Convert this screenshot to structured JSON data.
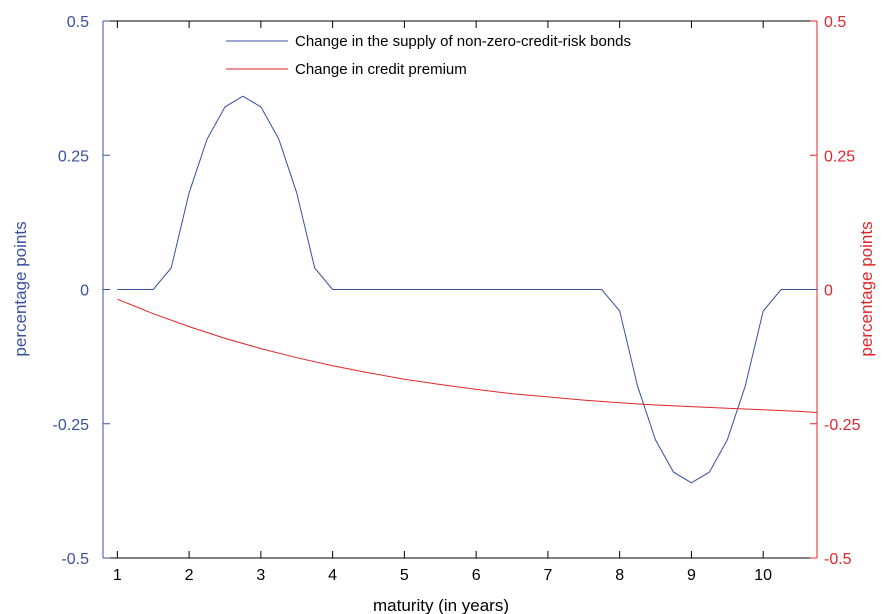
{
  "chart_data": {
    "type": "line",
    "title": "",
    "xlabel": "maturity (in years)",
    "ylabel_left": "percentage points",
    "ylabel_right": "percentage points",
    "xlim": [
      0.8,
      10.75
    ],
    "ylim_left": [
      -0.5,
      0.5
    ],
    "ylim_right": [
      -0.5,
      0.5
    ],
    "x_ticks": [
      1,
      2,
      3,
      4,
      5,
      6,
      7,
      8,
      9,
      10
    ],
    "x_tick_labels": [
      "1",
      "2",
      "3",
      "4",
      "5",
      "6",
      "7",
      "8",
      "9",
      "10"
    ],
    "y_ticks": [
      -0.5,
      -0.25,
      0,
      0.25,
      0.5
    ],
    "y_tick_labels_left": [
      "-0.5",
      "-0.25",
      "0",
      "0.25",
      "0.5"
    ],
    "y_tick_labels_right": [
      "-0.5",
      "-0.25",
      "0",
      "0.25",
      "0.5"
    ],
    "grid": false,
    "legend_position": "top-center",
    "series": [
      {
        "name": "Change in the supply of non-zero-credit-risk bonds",
        "axis": "left",
        "color": "#3a4fa0",
        "x": [
          1,
          1.25,
          1.5,
          1.75,
          2,
          2.25,
          2.5,
          2.75,
          3,
          3.25,
          3.5,
          3.75,
          4,
          4.25,
          4.5,
          4.75,
          5,
          5.25,
          5.5,
          5.75,
          6,
          6.25,
          6.5,
          6.75,
          7,
          7.25,
          7.5,
          7.75,
          8,
          8.25,
          8.5,
          8.75,
          9,
          9.25,
          9.5,
          9.75,
          10,
          10.25,
          10.5,
          10.75
        ],
        "y": [
          0,
          0,
          0,
          0.04,
          0.18,
          0.28,
          0.34,
          0.36,
          0.34,
          0.28,
          0.18,
          0.04,
          0,
          0,
          0,
          0,
          0,
          0,
          0,
          0,
          0,
          0,
          0,
          0,
          0,
          0,
          0,
          0.0,
          -0.04,
          -0.18,
          -0.28,
          -0.34,
          -0.36,
          -0.34,
          -0.28,
          -0.18,
          -0.04,
          0,
          0,
          0
        ]
      },
      {
        "name": "Change in credit premium",
        "axis": "right",
        "color": "#e0262b",
        "x": [
          1,
          1.5,
          2,
          2.5,
          3,
          3.5,
          4,
          4.5,
          5,
          5.5,
          6,
          6.5,
          7,
          7.5,
          8,
          8.5,
          9,
          9.5,
          10,
          10.5,
          10.75
        ],
        "y": [
          -0.018,
          -0.045,
          -0.069,
          -0.091,
          -0.11,
          -0.127,
          -0.142,
          -0.155,
          -0.167,
          -0.177,
          -0.186,
          -0.194,
          -0.2,
          -0.206,
          -0.211,
          -0.215,
          -0.218,
          -0.221,
          -0.224,
          -0.227,
          -0.229
        ]
      }
    ]
  }
}
